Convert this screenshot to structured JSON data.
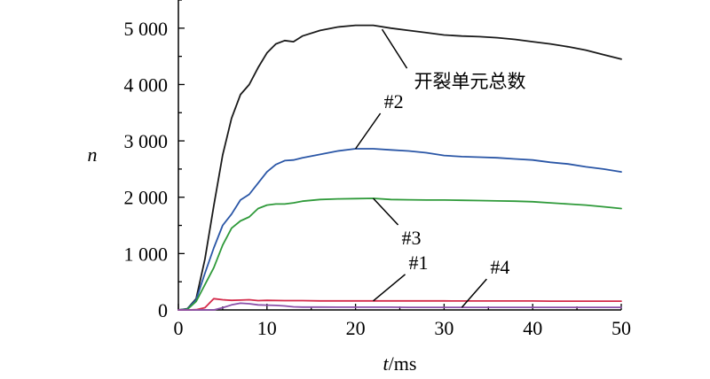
{
  "chart_data": {
    "type": "line",
    "title": "",
    "xlabel_italic": "t",
    "xlabel_unit": "/ms",
    "ylabel": "n",
    "xlim": [
      0,
      50
    ],
    "ylim": [
      0,
      5500
    ],
    "x_ticks": [
      {
        "value": 0,
        "label": "0"
      },
      {
        "value": 10,
        "label": "10"
      },
      {
        "value": 20,
        "label": "20"
      },
      {
        "value": 30,
        "label": "30"
      },
      {
        "value": 40,
        "label": "40"
      },
      {
        "value": 50,
        "label": "50"
      }
    ],
    "y_ticks": [
      {
        "value": 0,
        "label": "0"
      },
      {
        "value": 1000,
        "label": "1 000"
      },
      {
        "value": 2000,
        "label": "2 000"
      },
      {
        "value": 3000,
        "label": "3 000"
      },
      {
        "value": 4000,
        "label": "4 000"
      },
      {
        "value": 5000,
        "label": "5 000"
      }
    ],
    "grid": false,
    "series": [
      {
        "name": "开裂单元总数",
        "color": "#1a1a1a",
        "x": [
          0,
          1,
          2,
          3,
          4,
          5,
          6,
          7,
          8,
          9,
          10,
          11,
          12,
          13,
          14,
          16,
          18,
          20,
          22,
          24,
          26,
          28,
          30,
          32,
          34,
          36,
          38,
          40,
          42,
          44,
          46,
          48,
          50
        ],
        "y": [
          0,
          20,
          200,
          900,
          1850,
          2750,
          3400,
          3820,
          4000,
          4300,
          4560,
          4720,
          4780,
          4760,
          4860,
          4960,
          5020,
          5050,
          5050,
          5000,
          4960,
          4920,
          4880,
          4860,
          4850,
          4830,
          4800,
          4760,
          4720,
          4670,
          4610,
          4530,
          4450
        ]
      },
      {
        "name": "#2",
        "color": "#2a56a6",
        "x": [
          0,
          1,
          2,
          3,
          4,
          5,
          6,
          7,
          8,
          9,
          10,
          11,
          12,
          13,
          14,
          16,
          18,
          20,
          22,
          24,
          26,
          28,
          30,
          32,
          34,
          36,
          38,
          40,
          42,
          44,
          46,
          48,
          50
        ],
        "y": [
          0,
          15,
          180,
          650,
          1100,
          1500,
          1700,
          1950,
          2050,
          2250,
          2450,
          2580,
          2650,
          2660,
          2700,
          2760,
          2820,
          2860,
          2860,
          2840,
          2820,
          2790,
          2740,
          2720,
          2710,
          2700,
          2680,
          2660,
          2620,
          2590,
          2540,
          2500,
          2450
        ]
      },
      {
        "name": "#3",
        "color": "#2f9a3a",
        "x": [
          0,
          1,
          2,
          3,
          4,
          5,
          6,
          7,
          8,
          9,
          10,
          11,
          12,
          13,
          14,
          16,
          18,
          20,
          22,
          24,
          26,
          28,
          30,
          32,
          34,
          36,
          38,
          40,
          42,
          44,
          46,
          48,
          50
        ],
        "y": [
          0,
          10,
          150,
          450,
          750,
          1150,
          1450,
          1580,
          1650,
          1800,
          1860,
          1880,
          1880,
          1900,
          1930,
          1960,
          1970,
          1975,
          1980,
          1960,
          1955,
          1950,
          1950,
          1945,
          1940,
          1935,
          1930,
          1920,
          1900,
          1880,
          1860,
          1830,
          1800
        ]
      },
      {
        "name": "#1",
        "color": "#d42a4a",
        "x": [
          0,
          1,
          2,
          3,
          4,
          5,
          6,
          7,
          8,
          9,
          10,
          12,
          14,
          16,
          18,
          20,
          22,
          24,
          26,
          28,
          30,
          32,
          34,
          36,
          38,
          40,
          42,
          44,
          46,
          48,
          50
        ],
        "y": [
          0,
          0,
          5,
          40,
          200,
          180,
          170,
          175,
          180,
          165,
          170,
          165,
          165,
          160,
          160,
          160,
          160,
          160,
          160,
          160,
          160,
          158,
          158,
          158,
          158,
          158,
          155,
          155,
          155,
          155,
          155
        ]
      },
      {
        "name": "#4",
        "color": "#8a4fa8",
        "x": [
          0,
          2,
          4,
          5,
          6,
          7,
          8,
          9,
          10,
          11,
          12,
          13,
          14,
          16,
          18,
          20,
          22,
          24,
          26,
          28,
          30,
          32,
          34,
          36,
          38,
          40,
          42,
          44,
          46,
          48,
          50
        ],
        "y": [
          0,
          0,
          0,
          40,
          90,
          120,
          110,
          90,
          85,
          80,
          70,
          55,
          50,
          50,
          48,
          48,
          48,
          48,
          45,
          45,
          45,
          45,
          45,
          45,
          45,
          45,
          45,
          45,
          45,
          45,
          45
        ]
      }
    ],
    "annotations": [
      {
        "text": "开裂单元总数",
        "series": "开裂单元总数",
        "anchor_x": 23,
        "anchor_y": 4980
      },
      {
        "text": "#2",
        "series": "#2",
        "anchor_x": 20,
        "anchor_y": 2860
      },
      {
        "text": "#3",
        "series": "#3",
        "anchor_x": 22,
        "anchor_y": 1980
      },
      {
        "text": "#1",
        "series": "#1",
        "anchor_x": 22,
        "anchor_y": 160
      },
      {
        "text": "#4",
        "series": "#4",
        "anchor_x": 32,
        "anchor_y": 45
      }
    ]
  }
}
